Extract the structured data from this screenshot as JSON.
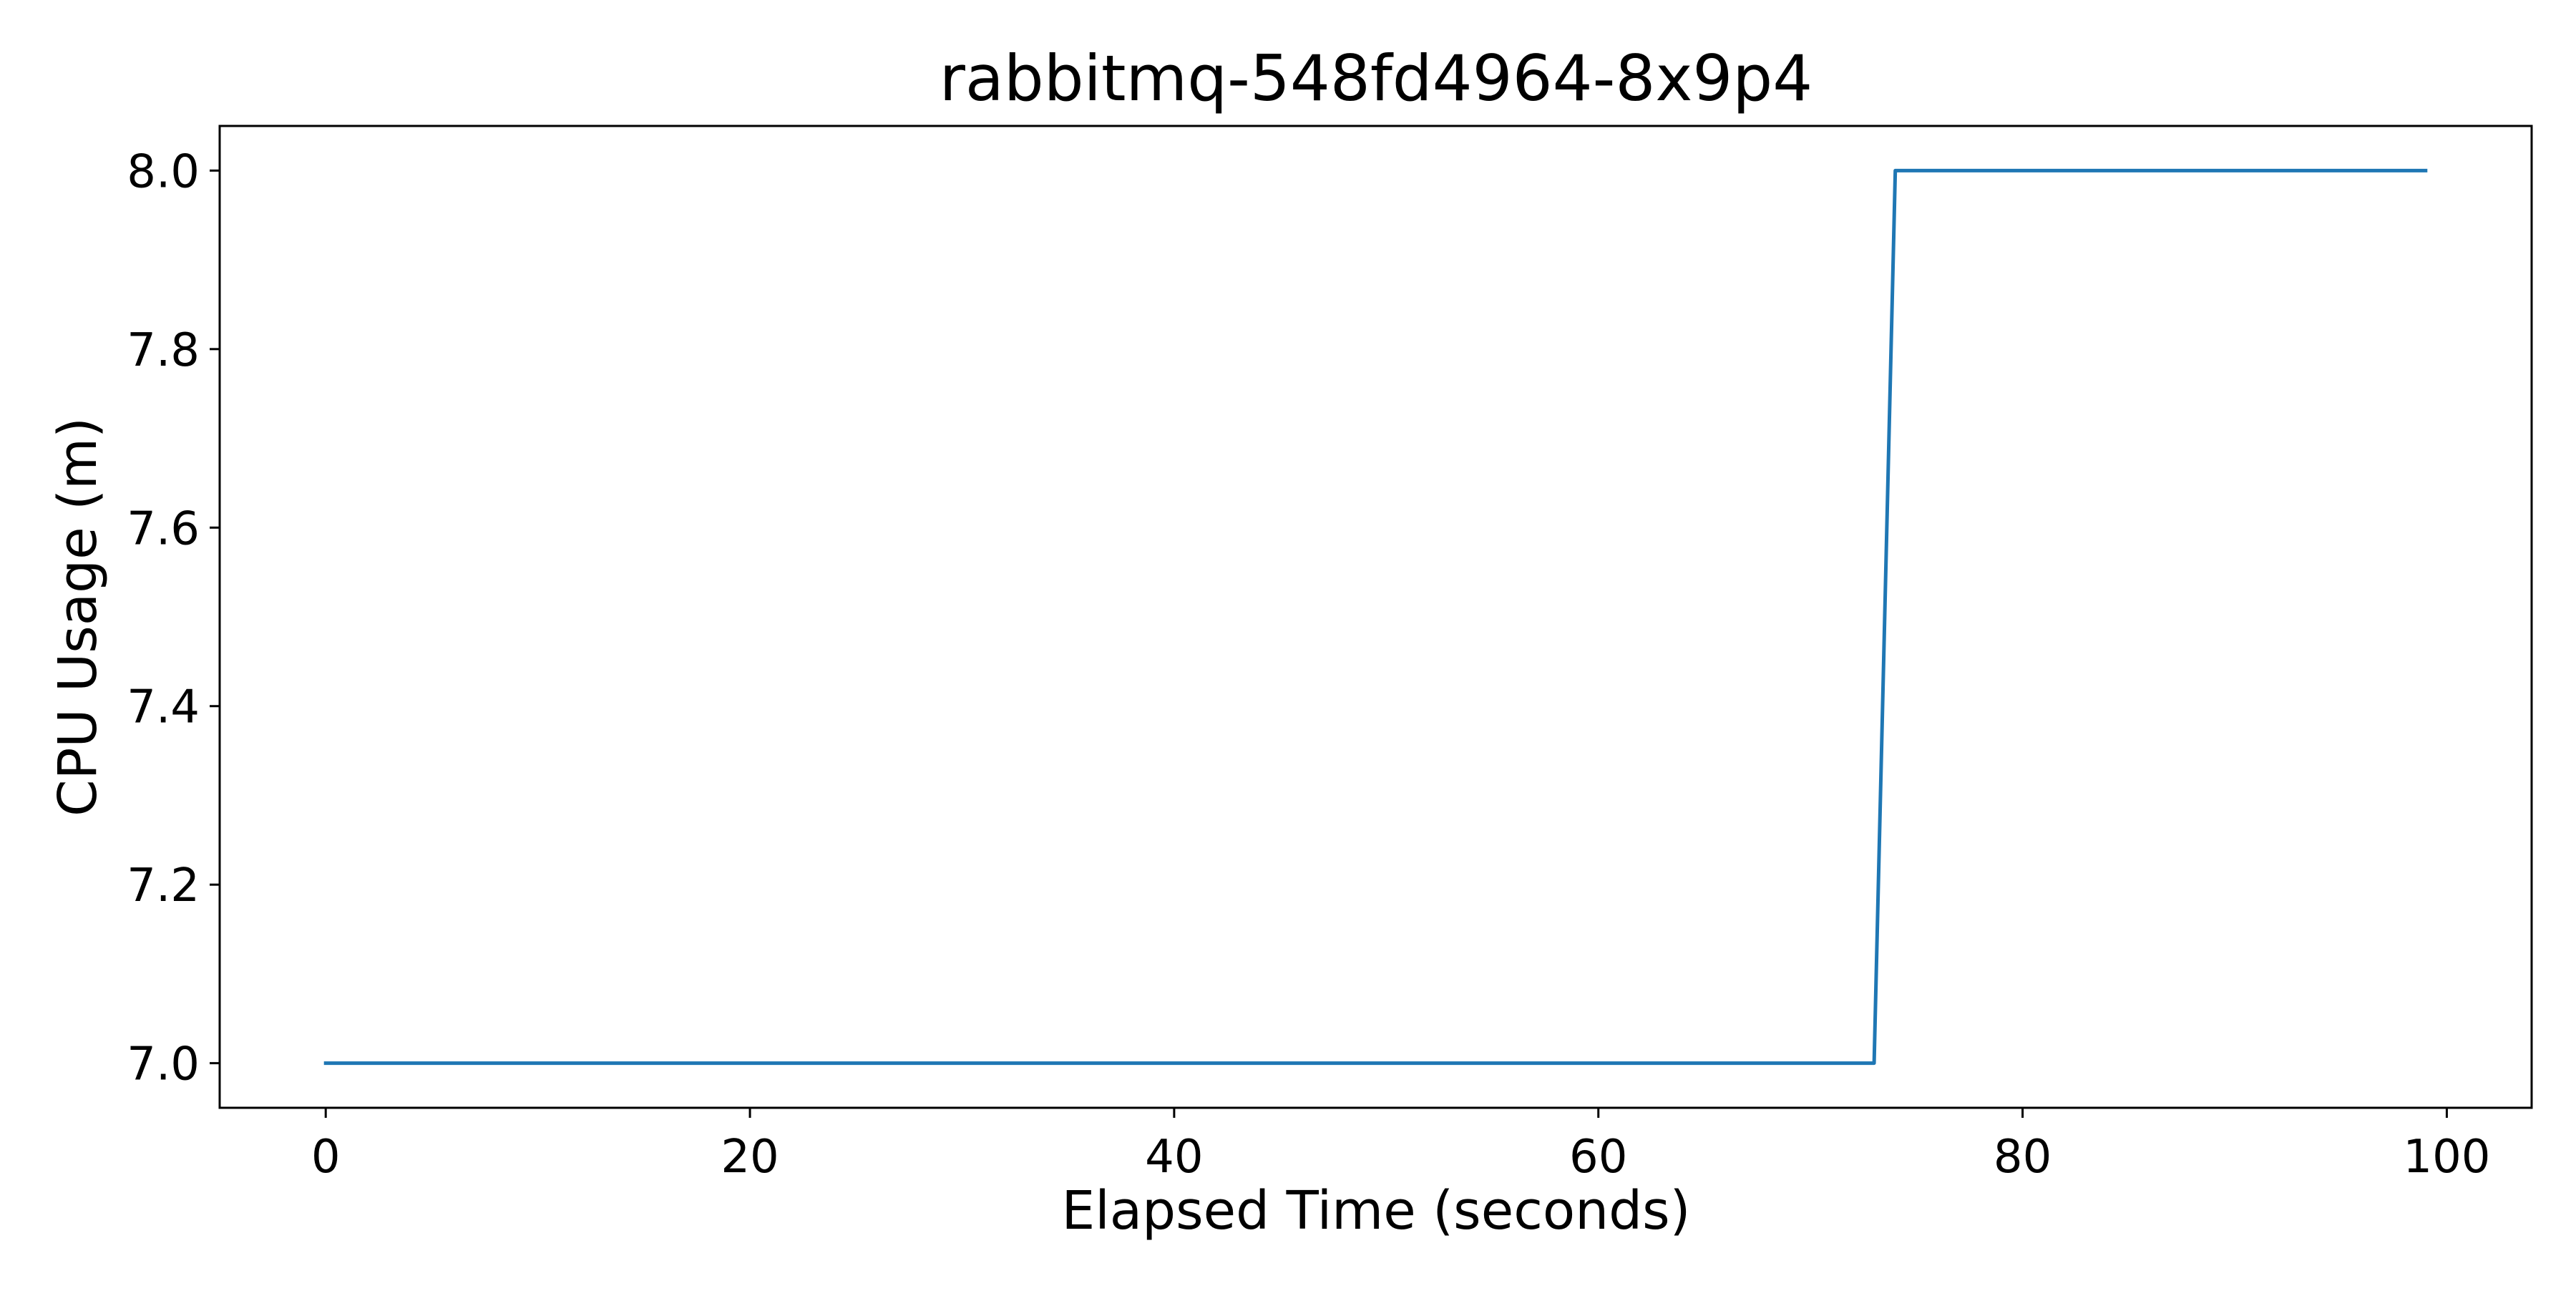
{
  "chart_data": {
    "type": "line",
    "title": "rabbitmq-548fd4964-8x9p4",
    "xlabel": "Elapsed Time (seconds)",
    "ylabel": "CPU Usage (m)",
    "xlim": [
      -5,
      104
    ],
    "ylim": [
      6.95,
      8.05
    ],
    "x_ticks": [
      0,
      20,
      40,
      60,
      80,
      100
    ],
    "x_tick_labels": [
      "0",
      "20",
      "40",
      "60",
      "80",
      "100"
    ],
    "y_ticks": [
      7.0,
      7.2,
      7.4,
      7.6,
      7.8,
      8.0
    ],
    "y_tick_labels": [
      "7.0",
      "7.2",
      "7.4",
      "7.6",
      "7.8",
      "8.0"
    ],
    "grid": false,
    "legend": false,
    "series": [
      {
        "color": "#1f77b4",
        "x": [
          0,
          73,
          74,
          99
        ],
        "y": [
          7.0,
          7.0,
          8.0,
          8.0
        ]
      }
    ]
  }
}
